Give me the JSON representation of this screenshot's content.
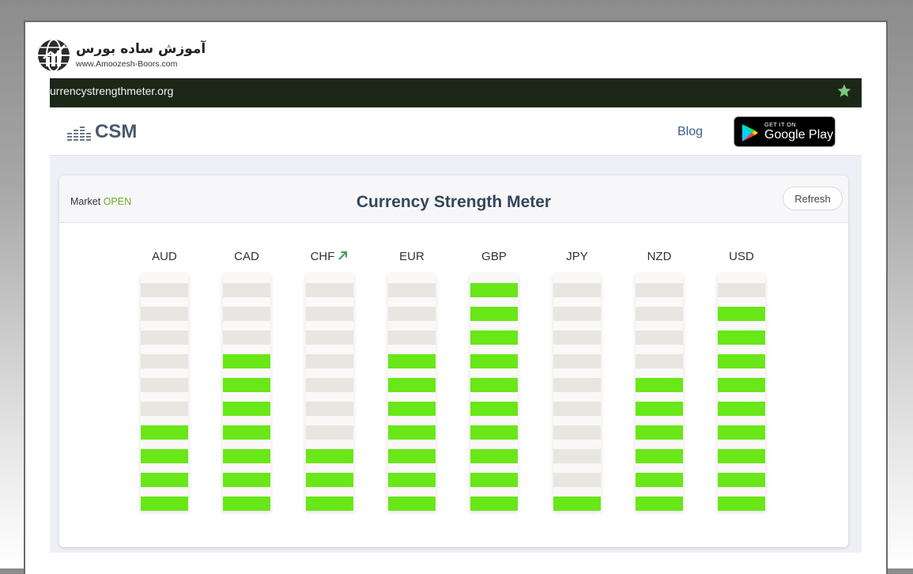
{
  "watermark": {
    "name_fa": "آموزش ساده بورس",
    "site": "www.Amoozesh-Boors.com"
  },
  "browser": {
    "url": "urrencystrengthmeter.org",
    "star_icon": "star-icon"
  },
  "nav": {
    "logo_text": "CSM",
    "blog_label": "Blog",
    "gplay_small": "GET IT ON",
    "gplay_big": "Google Play"
  },
  "card": {
    "market_label": "Market",
    "market_status": "OPEN",
    "title": "Currency Strength Meter",
    "refresh_label": "Refresh"
  },
  "colors": {
    "bar_on": "#69e719",
    "bar_off": "#e8e6e1",
    "open_status": "#6fae2a",
    "trend_arrow": "#3aa05a"
  },
  "meter": {
    "max_level": 10,
    "currencies": [
      {
        "code": "AUD",
        "level": 4,
        "trend": ""
      },
      {
        "code": "CAD",
        "level": 7,
        "trend": ""
      },
      {
        "code": "CHF",
        "level": 3,
        "trend": "up"
      },
      {
        "code": "EUR",
        "level": 7,
        "trend": ""
      },
      {
        "code": "GBP",
        "level": 10,
        "trend": ""
      },
      {
        "code": "JPY",
        "level": 1,
        "trend": ""
      },
      {
        "code": "NZD",
        "level": 6,
        "trend": ""
      },
      {
        "code": "USD",
        "level": 9,
        "trend": ""
      }
    ]
  }
}
